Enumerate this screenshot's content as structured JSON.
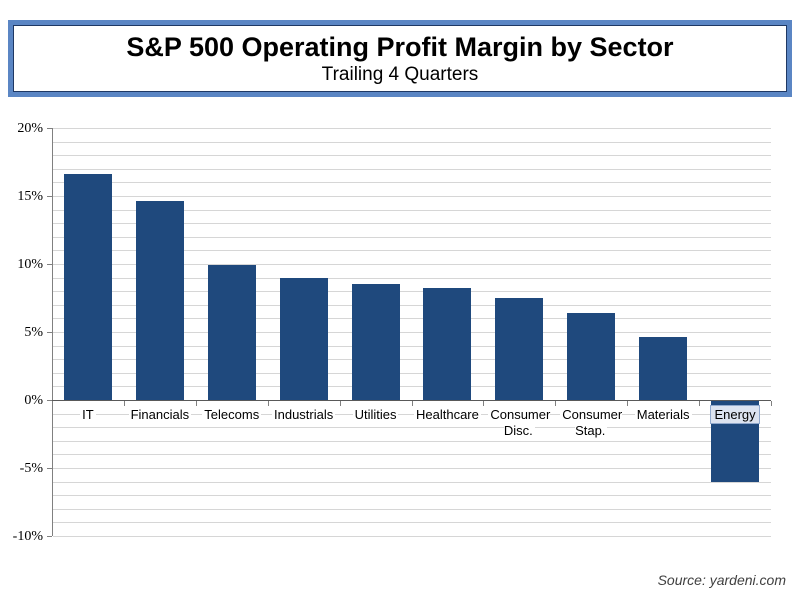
{
  "title_box": {
    "title": "S&P 500 Operating Profit Margin by Sector",
    "subtitle": "Trailing 4 Quarters"
  },
  "source": "Source: yardeni.com",
  "colors": {
    "bar": "#1F497D",
    "title_border": "#5B86C4",
    "title_border_inner": "#1F3864",
    "gridline": "#D6D6D6",
    "axis": "#808080",
    "zero_line": "#595959",
    "highlight_bg": "#DCE3F0",
    "highlight_border": "#90A8CC"
  },
  "chart_data": {
    "type": "bar",
    "title": "S&P 500 Operating Profit Margin by Sector",
    "subtitle": "Trailing 4 Quarters",
    "categories": [
      "IT",
      "Financials",
      "Telecoms",
      "Industrials",
      "Utilities",
      "Healthcare",
      "Consumer Disc.",
      "Consumer Stap.",
      "Materials",
      "Energy"
    ],
    "values": [
      16.6,
      14.6,
      9.9,
      9.0,
      8.5,
      8.2,
      7.5,
      6.4,
      4.6,
      -6.0
    ],
    "xlabel": "",
    "ylabel": "",
    "ylim": [
      -10,
      20
    ],
    "ytick_step": 5,
    "minor_grid_step": 1,
    "ytick_labels": [
      "20%",
      "15%",
      "10%",
      "5%",
      "0%",
      "-5%",
      "-10%"
    ],
    "grid": true,
    "legend": false,
    "highlighted_category": "Energy",
    "source": "Source: yardeni.com"
  }
}
